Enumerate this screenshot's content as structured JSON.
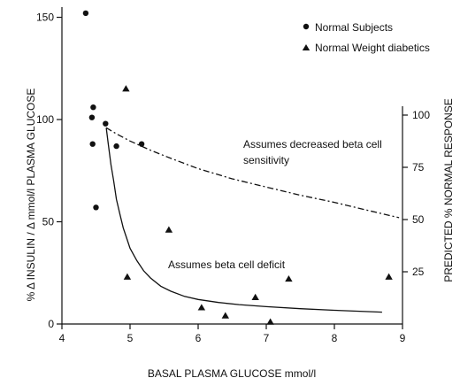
{
  "chart_data": {
    "type": "scatter",
    "xlabel": "BASAL PLASMA GLUCOSE mmol/l",
    "ylabel": "% Δ INSULIN / Δ mmol/l PLASMA GLUCOSE",
    "ylabel_right": "PREDICTED % NORMAL RESPONSE",
    "xlim": [
      4,
      9
    ],
    "ylim": [
      0,
      155
    ],
    "ylim_right": [
      0,
      100
    ],
    "x_ticks": [
      "4",
      "5",
      "6",
      "7",
      "8",
      "9"
    ],
    "y_ticks": [
      "0",
      "50",
      "100",
      "150"
    ],
    "y_ticks_right": [
      "25",
      "50",
      "75",
      "100"
    ],
    "legend_position": "top-right",
    "series": [
      {
        "name": "Normal Subjects",
        "marker": "circle",
        "x": [
          4.35,
          4.44,
          4.45,
          4.46,
          4.5,
          4.64,
          4.8,
          5.17
        ],
        "y": [
          152,
          101,
          88,
          106,
          57,
          98,
          87,
          88
        ]
      },
      {
        "name": "Normal Weight diabetics",
        "marker": "triangle",
        "x": [
          4.94,
          4.96,
          5.57,
          6.05,
          6.4,
          6.84,
          7.06,
          7.33,
          8.8
        ],
        "y": [
          115,
          23,
          46,
          8,
          4,
          13,
          1,
          22,
          23
        ]
      }
    ],
    "curves": [
      {
        "name": "Assumes beta cell deficit",
        "style": "solid",
        "x": [
          4.65,
          4.68,
          4.72,
          4.76,
          4.8,
          4.85,
          4.9,
          4.95,
          5.0,
          5.1,
          5.2,
          5.3,
          5.45,
          5.6,
          5.8,
          6.0,
          6.3,
          6.6,
          7.0,
          7.5,
          8.0,
          8.7
        ],
        "y": [
          96,
          88,
          78,
          70,
          61,
          54,
          47,
          42,
          37,
          31,
          26,
          22.5,
          18.5,
          16,
          13.5,
          12,
          10.5,
          9.5,
          8.5,
          7.5,
          6.7,
          5.8
        ]
      },
      {
        "name": "Assumes decreased beta cell sensitivity",
        "style": "dash-dot",
        "x": [
          4.65,
          4.8,
          5.0,
          5.3,
          5.6,
          6.0,
          6.5,
          7.0,
          7.5,
          8.0,
          8.5,
          8.95
        ],
        "y": [
          96,
          93,
          89.5,
          85,
          81,
          76,
          71,
          67,
          63,
          59.5,
          55.5,
          52
        ]
      }
    ],
    "annotations": [
      "Assumes decreased beta cell",
      "sensitivity",
      "Assumes beta cell deficit"
    ]
  }
}
